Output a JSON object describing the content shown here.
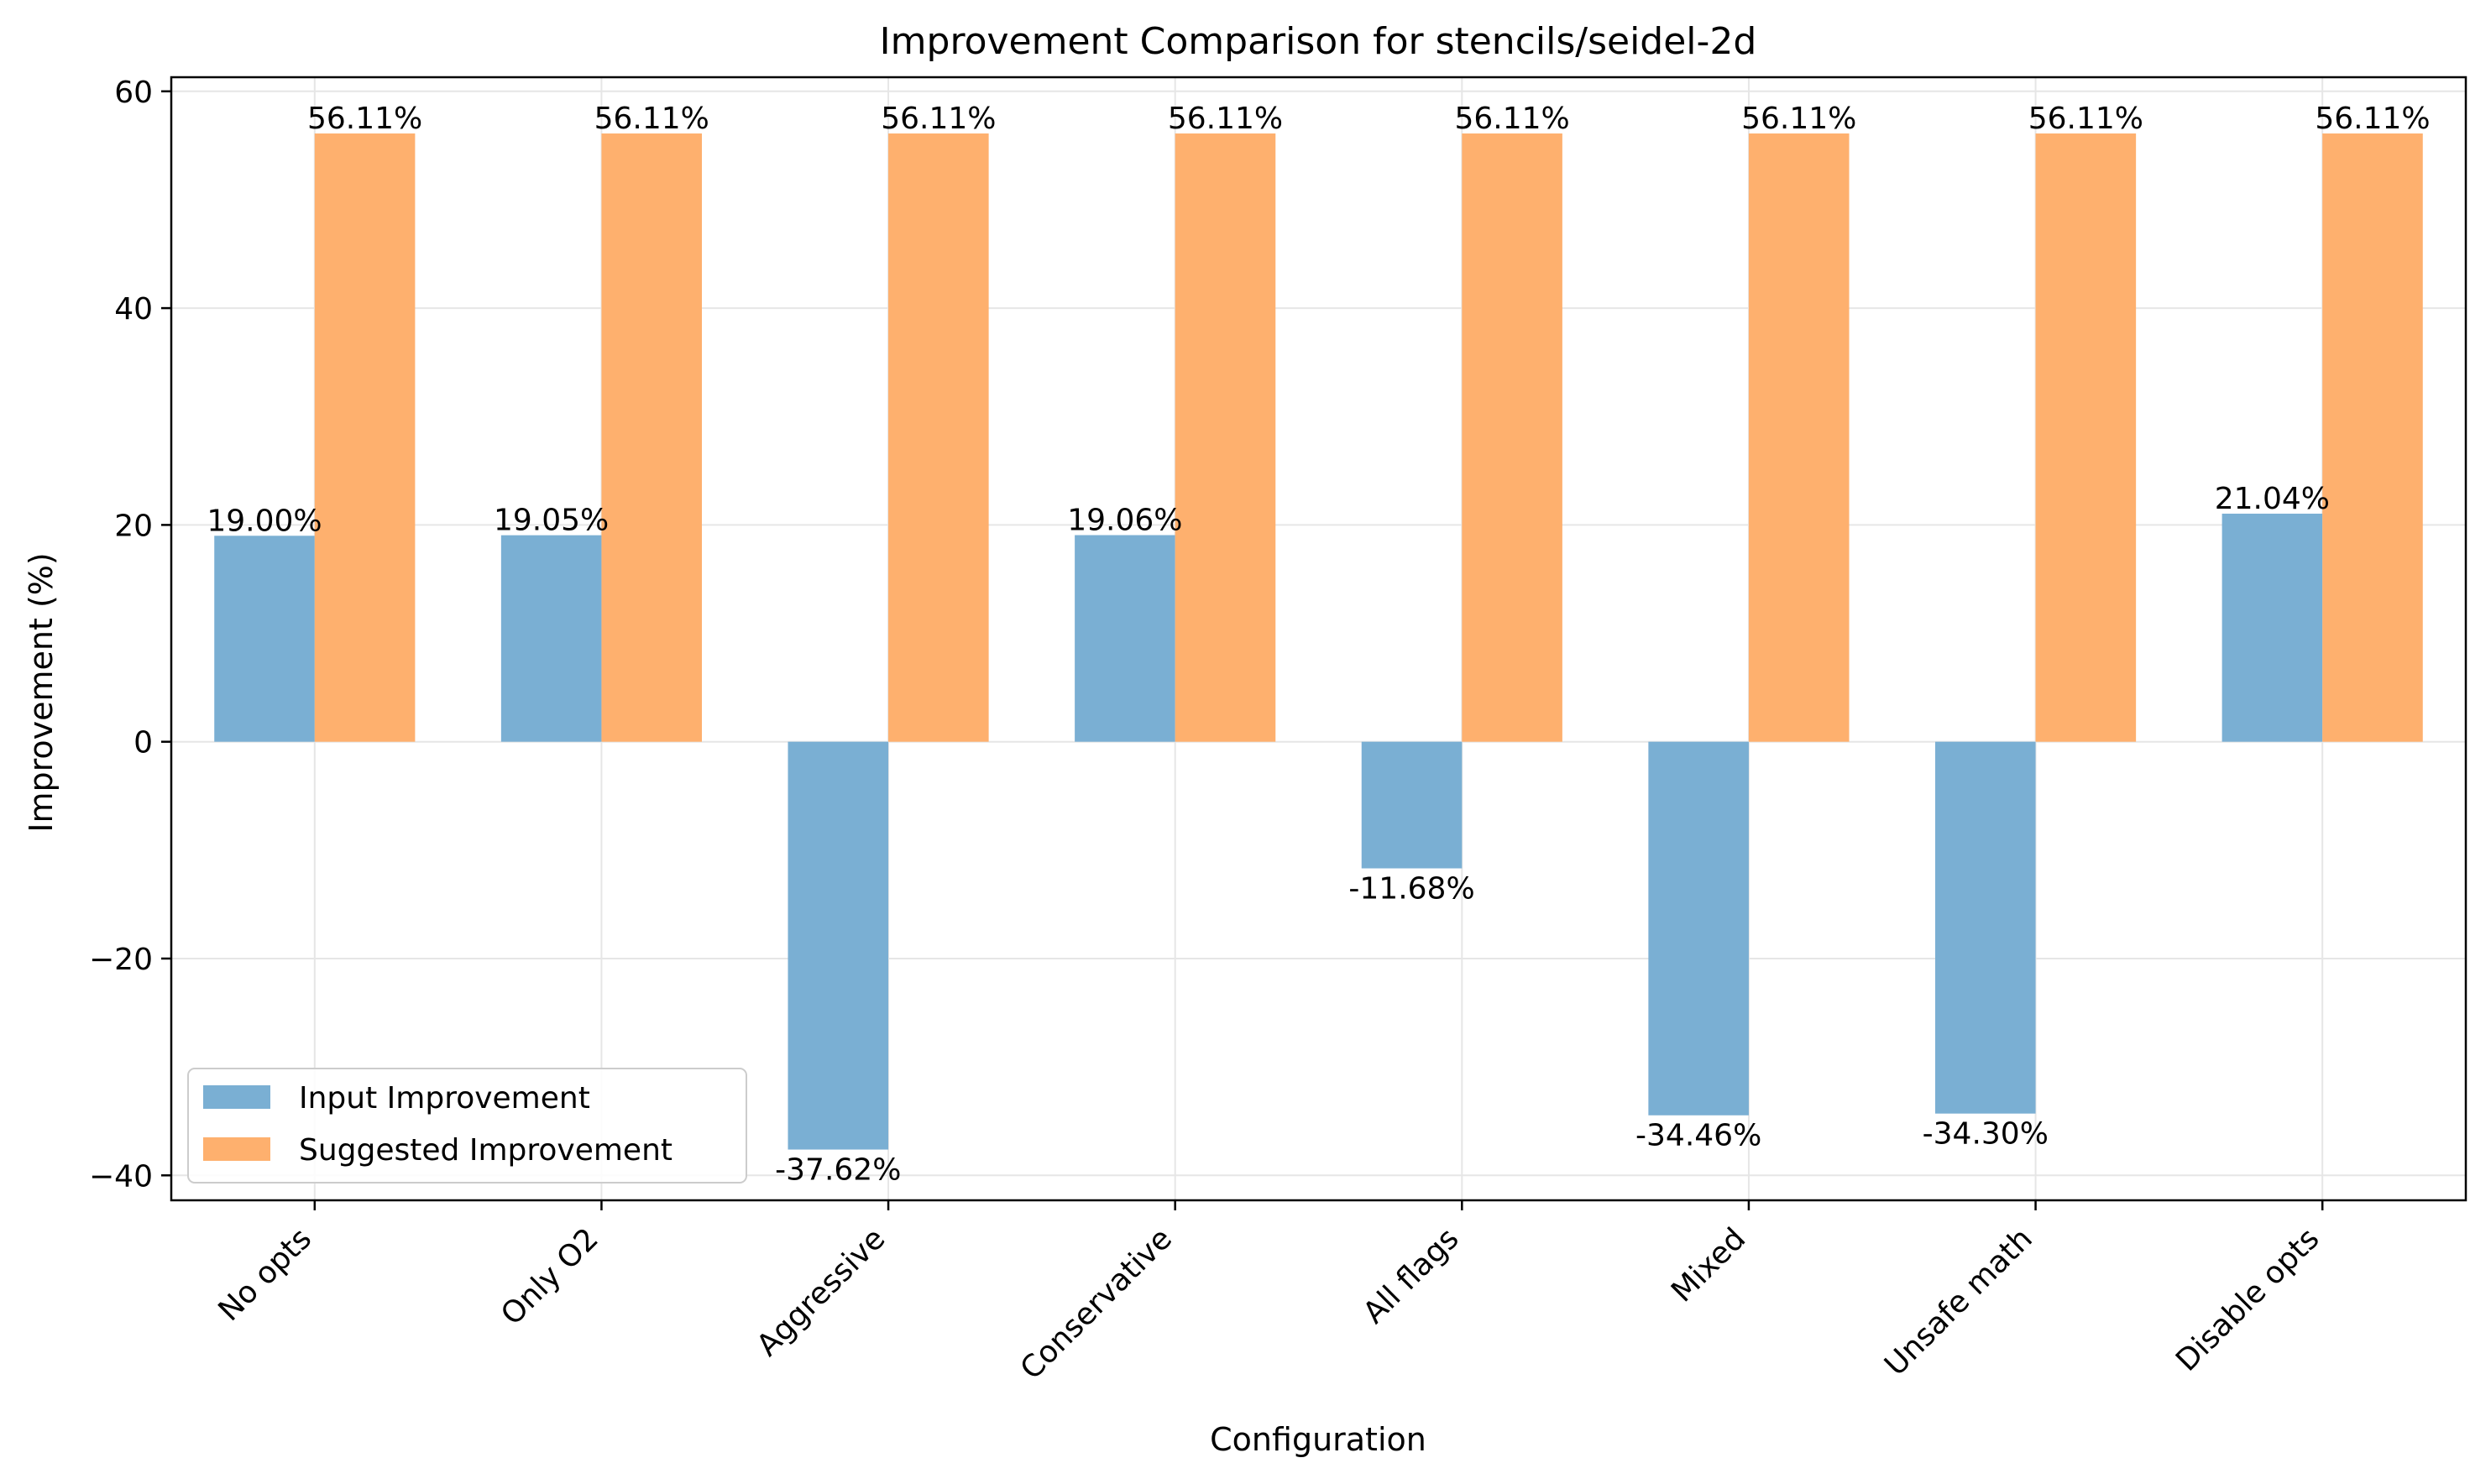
{
  "chart_data": {
    "type": "bar",
    "title": "Improvement Comparison for stencils/seidel-2d",
    "xlabel": "Configuration",
    "ylabel": "Improvement (%)",
    "categories": [
      "No opts",
      "Only O2",
      "Aggressive",
      "Conservative",
      "All flags",
      "Mixed",
      "Unsafe math",
      "Disable opts"
    ],
    "series": [
      {
        "name": "Input Improvement",
        "color": "#7aafd3",
        "values": [
          19.0,
          19.05,
          -37.62,
          19.06,
          -11.68,
          -34.46,
          -34.3,
          21.04
        ],
        "labels": [
          "19.00%",
          "19.05%",
          "-37.62%",
          "19.06%",
          "-11.68%",
          "-34.46%",
          "-34.30%",
          "21.04%"
        ]
      },
      {
        "name": "Suggested Improvement",
        "color": "#feb06e",
        "values": [
          56.11,
          56.11,
          56.11,
          56.11,
          56.11,
          56.11,
          56.11,
          56.11
        ],
        "labels": [
          "56.11%",
          "56.11%",
          "56.11%",
          "56.11%",
          "56.11%",
          "56.11%",
          "56.11%",
          "56.11%"
        ]
      }
    ],
    "ylim": [
      -42.3,
      61.3
    ],
    "yticks": [
      -40,
      -20,
      0,
      20,
      40,
      60
    ],
    "ytick_labels": [
      "−40",
      "−20",
      "0",
      "20",
      "40",
      "60"
    ],
    "grid": true,
    "legend_position": "lower-left"
  }
}
